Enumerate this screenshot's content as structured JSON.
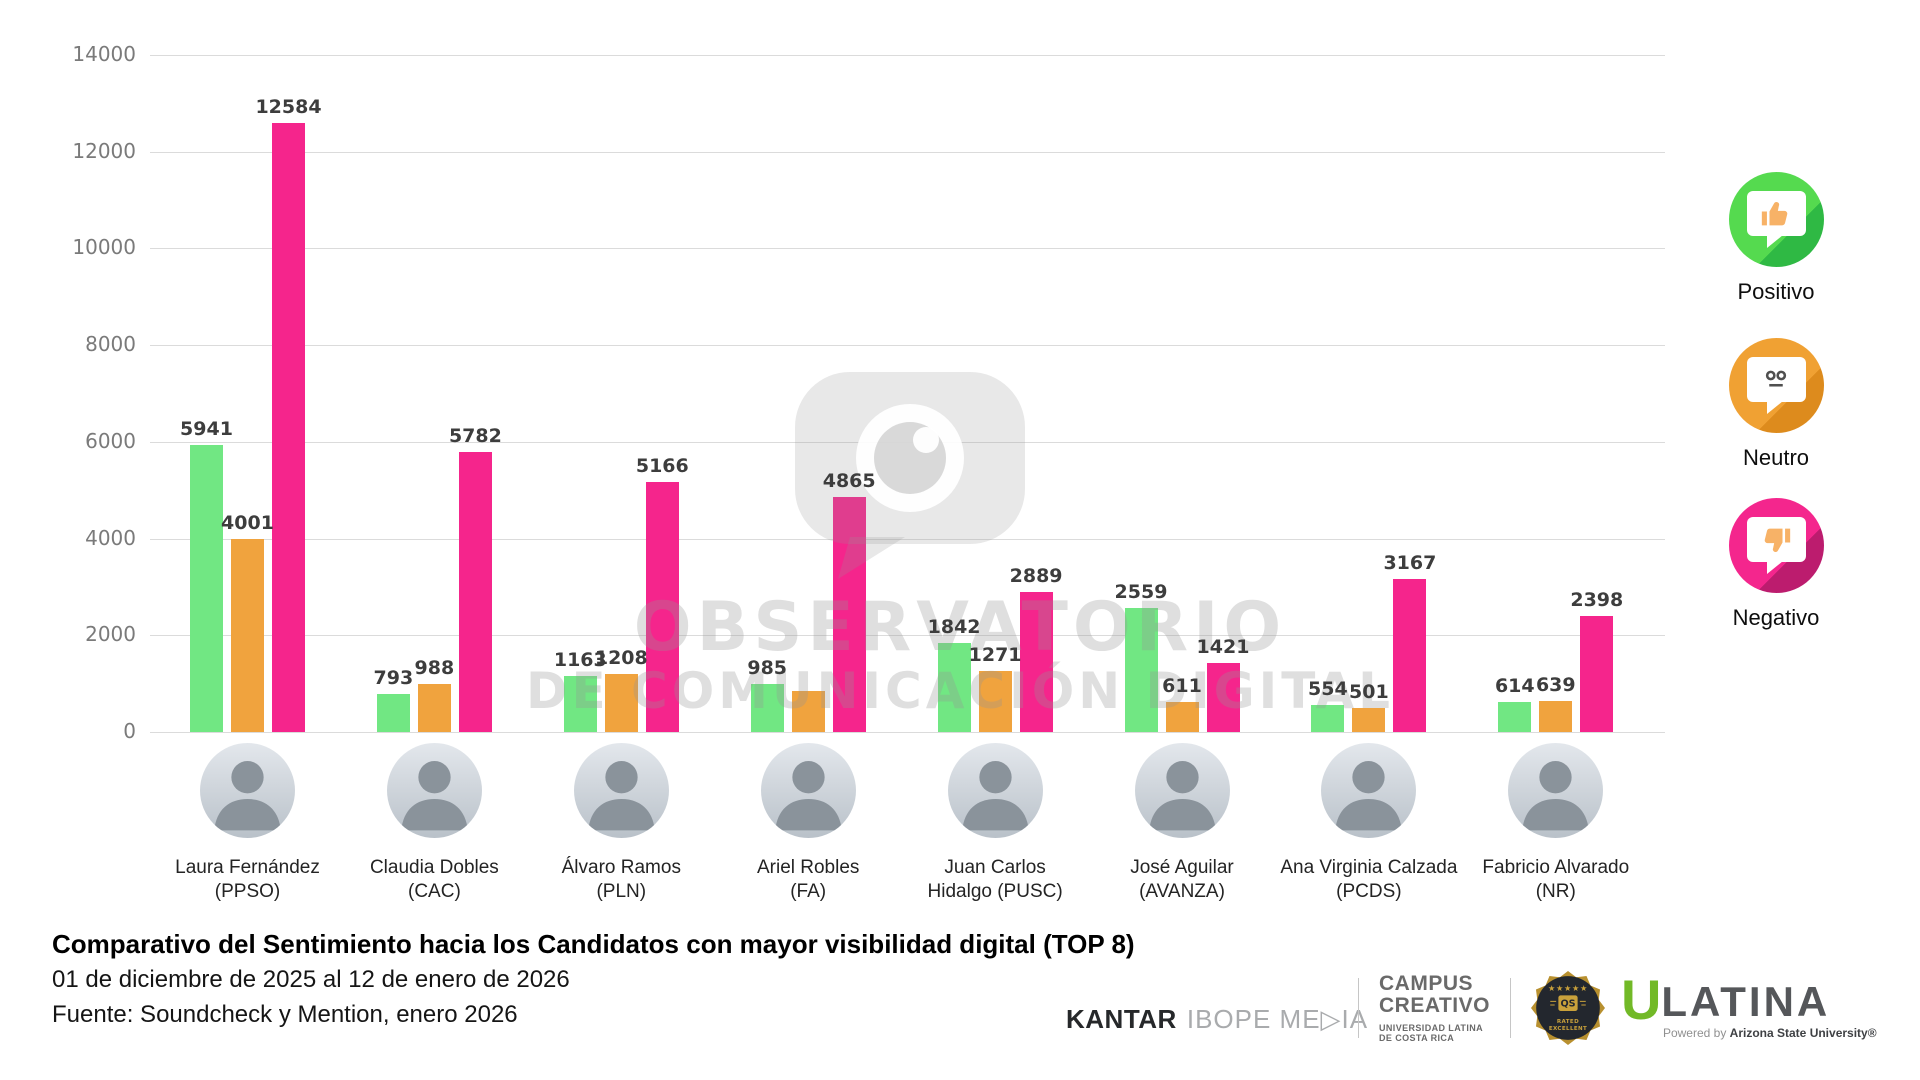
{
  "chart_data": {
    "type": "bar",
    "title": "Comparativo del Sentimiento hacia los Candidatos con mayor visibilidad digital (TOP 8)",
    "date_range": "01 de diciembre de 2025 al 12 de enero de 2026",
    "source": "Fuente: Soundcheck y Mention, enero 2026",
    "ylim": [
      0,
      14000
    ],
    "yticks": [
      14000,
      12000,
      10000,
      8000,
      6000,
      4000,
      2000,
      0
    ],
    "grid": true,
    "legend_position": "right",
    "categories": [
      {
        "line1": "Laura Fernández",
        "line2": "(PPSO)"
      },
      {
        "line1": "Claudia Dobles",
        "line2": "(CAC)"
      },
      {
        "line1": "Álvaro Ramos",
        "line2": "(PLN)"
      },
      {
        "line1": "Ariel Robles",
        "line2": "(FA)"
      },
      {
        "line1": "Juan Carlos",
        "line2": "Hidalgo (PUSC)"
      },
      {
        "line1": "José Aguilar",
        "line2": "(AVANZA)"
      },
      {
        "line1": "Ana Virginia Calzada",
        "line2": "(PCDS)"
      },
      {
        "line1": "Fabricio Alvarado",
        "line2": "(NR)"
      }
    ],
    "series": [
      {
        "name": "Positivo",
        "color": "#71E783",
        "values": [
          5941,
          793,
          1163,
          985,
          1842,
          2559,
          554,
          614
        ]
      },
      {
        "name": "Neutro",
        "color": "#F0A33E",
        "values": [
          4001,
          988,
          1208,
          850,
          1271,
          611,
          501,
          639
        ],
        "display_labels": [
          "4001",
          "988",
          "1208",
          "",
          "1271",
          "611",
          "501",
          "639"
        ]
      },
      {
        "name": "Negativo",
        "color": "#F5258C",
        "values": [
          12584,
          5782,
          5166,
          4865,
          2889,
          1421,
          3167,
          2398
        ]
      }
    ]
  },
  "watermark": {
    "line1": "OBSERVATORIO",
    "line2": "DE COMUNICACIÓN DIGITAL"
  },
  "legend": {
    "items": [
      {
        "label": "Positivo",
        "icon": "thumbs-up-bubble",
        "color": "#55DA4F"
      },
      {
        "label": "Neutro",
        "icon": "neutral-face-bubble",
        "color": "#F0A133"
      },
      {
        "label": "Negativo",
        "icon": "thumbs-down-bubble",
        "color": "#F4268D"
      }
    ]
  },
  "footer": {
    "logos": {
      "kantar_brand": "KANTAR",
      "kantar_suffix": "IBOPE ME▷IA",
      "campus_line1": "CAMPUS",
      "campus_line2": "CREATIVO",
      "campus_line3": "UNIVERSIDAD LATINA",
      "campus_line4": "DE COSTA RICA",
      "qs_stars": "★★★★★",
      "qs_label": "QS",
      "qs_rated": "RATED",
      "qs_excellent": "EXCELLENT",
      "ulatina_u": "U",
      "ulatina_rest": "LATINA",
      "powered_prefix": "Powered by",
      "powered_brand": "Arizona State University®"
    }
  }
}
